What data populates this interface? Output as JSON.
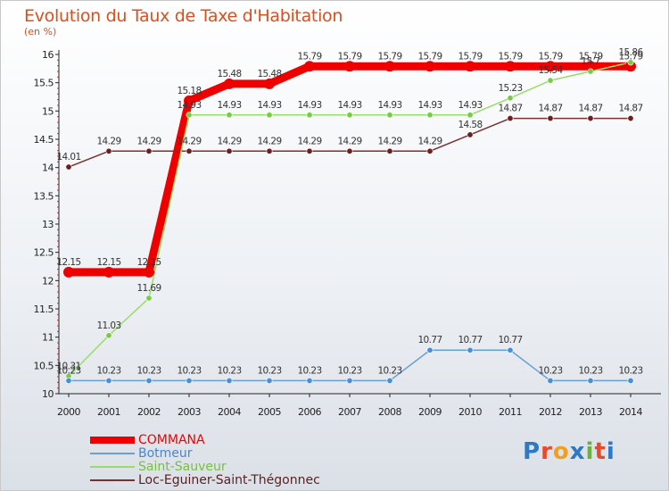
{
  "header": {
    "title": "Evolution du Taux de Taxe d'Habitation",
    "subtitle": "(en %)"
  },
  "logo": {
    "text": "Proxiti"
  },
  "chart_data": {
    "type": "line",
    "title": "Evolution du Taux de Taxe d'Habitation",
    "ylabel": "(en %)",
    "xlabel": "",
    "categories": [
      "2000",
      "2001",
      "2002",
      "2003",
      "2004",
      "2005",
      "2006",
      "2007",
      "2008",
      "2009",
      "2010",
      "2011",
      "2012",
      "2013",
      "2014"
    ],
    "ylim": [
      10,
      16
    ],
    "yticks": [
      "10",
      "10.5",
      "11",
      "11.5",
      "12",
      "12.5",
      "13",
      "13.5",
      "14",
      "14.5",
      "15",
      "15.5",
      "16"
    ],
    "grid": false,
    "legend_position": "bottom-left",
    "series": [
      {
        "name": "COMMANA",
        "color": "#ee0000",
        "values": [
          12.15,
          12.15,
          12.15,
          15.18,
          15.48,
          15.48,
          15.79,
          15.79,
          15.79,
          15.79,
          15.79,
          15.79,
          15.79,
          15.79,
          15.79
        ],
        "labels": [
          "12.15",
          "12.15",
          "12.15",
          "15.18",
          "15.48",
          "15.48",
          "15.79",
          "15.79",
          "15.79",
          "15.79",
          "15.79",
          "15.79",
          "15.79",
          "15.79",
          "15.79"
        ]
      },
      {
        "name": "Botmeur",
        "color": "#6a9fd4",
        "values": [
          10.23,
          10.23,
          10.23,
          10.23,
          10.23,
          10.23,
          10.23,
          10.23,
          10.23,
          10.77,
          10.77,
          10.77,
          10.23,
          10.23,
          10.23
        ],
        "labels": [
          "10.23",
          "10.23",
          "10.23",
          "10.23",
          "10.23",
          "10.23",
          "10.23",
          "10.23",
          "10.23",
          "10.77",
          "10.77",
          "10.77",
          "10.23",
          "10.23",
          "10.23"
        ]
      },
      {
        "name": "Saint-Sauveur",
        "color": "#99dd66",
        "values": [
          10.31,
          11.03,
          11.69,
          14.93,
          14.93,
          14.93,
          14.93,
          14.93,
          14.93,
          14.93,
          14.93,
          15.23,
          15.54,
          15.7,
          15.86
        ],
        "labels": [
          "10.31",
          "11.03",
          "11.69",
          "14.93",
          "14.93",
          "14.93",
          "14.93",
          "14.93",
          "14.93",
          "14.93",
          "14.93",
          "15.23",
          "15.54",
          "15.7",
          "15.86"
        ]
      },
      {
        "name": "Loc-Eguiner-Saint-Thégonnec",
        "color": "#7a3030",
        "values": [
          14.01,
          14.29,
          14.29,
          14.29,
          14.29,
          14.29,
          14.29,
          14.29,
          14.29,
          14.29,
          14.58,
          14.87,
          14.87,
          14.87,
          14.87
        ],
        "labels": [
          "14.01",
          "14.29",
          "14.29",
          "14.29",
          "14.29",
          "14.29",
          "14.29",
          "14.29",
          "14.29",
          "14.29",
          "14.58",
          "14.87",
          "14.87",
          "14.87",
          "14.87"
        ]
      }
    ]
  }
}
